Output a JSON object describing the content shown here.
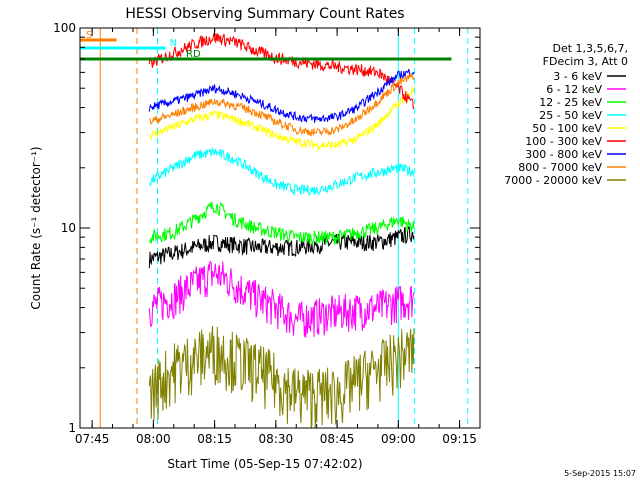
{
  "chart_data": {
    "type": "line",
    "title": "HESSI Observing Summary Count Rates",
    "xlabel": "Start Time (05-Sep-15 07:42:02)",
    "ylabel": "Count Rate (s⁻¹ detector⁻¹)",
    "yscale": "log",
    "ylim": [
      1,
      100
    ],
    "xlim": [
      "07:42:02",
      "09:20:00"
    ],
    "x_ticks": [
      "07:45",
      "08:00",
      "08:15",
      "08:30",
      "08:45",
      "09:00",
      "09:15"
    ],
    "y_ticks": [
      "1",
      "10",
      "100"
    ],
    "legend_header": [
      "Det 1,3,5,6,7,",
      "FDecim 3, Att 0"
    ],
    "legend_placement": "right",
    "date_stamp": "5-Sep-2015 15:07",
    "flags": [
      {
        "label": "S",
        "color": "#ff8000",
        "start": "07:42",
        "end": "07:51"
      },
      {
        "label": "N",
        "color": "#00ffff",
        "start": "07:42",
        "end": "08:03"
      },
      {
        "label": "RD",
        "color": "#008000",
        "start": "07:42",
        "end": "09:13"
      }
    ],
    "series": [
      {
        "name": "3 - 6 keV",
        "color": "#000000",
        "x": [
          "07:59",
          "08:05",
          "08:15",
          "08:25",
          "08:35",
          "08:45",
          "08:50",
          "08:55",
          "09:00",
          "09:04"
        ],
        "y": [
          7.0,
          7.5,
          8.5,
          8.0,
          8.0,
          8.5,
          8.5,
          8.5,
          9.0,
          9.5
        ]
      },
      {
        "name": "6 - 12 keV",
        "color": "#ff00ff",
        "x": [
          "07:59",
          "08:05",
          "08:15",
          "08:25",
          "08:35",
          "08:45",
          "08:55",
          "09:04"
        ],
        "y": [
          4.0,
          4.5,
          6.0,
          4.5,
          3.5,
          3.8,
          4.0,
          4.5
        ]
      },
      {
        "name": "12 - 25 keV",
        "color": "#00ff00",
        "x": [
          "07:59",
          "08:05",
          "08:10",
          "08:15",
          "08:20",
          "08:25",
          "08:30",
          "08:35",
          "08:40",
          "08:45",
          "08:50",
          "08:55",
          "09:00",
          "09:04"
        ],
        "y": [
          9.0,
          9.5,
          11.0,
          13.0,
          11.0,
          10.0,
          9.5,
          9.0,
          9.0,
          9.0,
          9.5,
          10.0,
          11.0,
          10.0
        ]
      },
      {
        "name": "25 - 50 keV",
        "color": "#00ffff",
        "x": [
          "07:59",
          "08:05",
          "08:10",
          "08:15",
          "08:20",
          "08:25",
          "08:30",
          "08:35",
          "08:40",
          "08:45",
          "08:50",
          "08:55",
          "09:00",
          "09:04"
        ],
        "y": [
          17.0,
          20.0,
          23.0,
          24.0,
          22.0,
          19.0,
          16.5,
          15.5,
          15.5,
          16.5,
          18.0,
          19.0,
          20.0,
          19.0
        ]
      },
      {
        "name": "50 - 100 keV",
        "color": "#ffff00",
        "x": [
          "07:59",
          "08:05",
          "08:10",
          "08:15",
          "08:20",
          "08:25",
          "08:30",
          "08:35",
          "08:40",
          "08:45",
          "08:50",
          "08:55",
          "09:00",
          "09:04"
        ],
        "y": [
          29.0,
          32.0,
          35.0,
          37.0,
          35.0,
          32.0,
          29.0,
          27.0,
          26.0,
          26.0,
          28.0,
          33.0,
          42.0,
          49.0
        ]
      },
      {
        "name": "100 - 300 keV",
        "color": "#ff0000",
        "x": [
          "07:59",
          "08:05",
          "08:10",
          "08:15",
          "08:20",
          "08:25",
          "08:30",
          "08:35",
          "08:40",
          "08:45",
          "08:50",
          "08:55",
          "09:00",
          "09:04"
        ],
        "y": [
          66.0,
          75.0,
          83.0,
          90.0,
          85.0,
          77.0,
          71.0,
          68.0,
          66.0,
          64.0,
          62.0,
          60.0,
          50.0,
          40.0
        ]
      },
      {
        "name": "300 - 800 keV",
        "color": "#0000ff",
        "x": [
          "07:59",
          "08:05",
          "08:10",
          "08:15",
          "08:20",
          "08:25",
          "08:30",
          "08:35",
          "08:40",
          "08:45",
          "08:50",
          "08:55",
          "09:00",
          "09:04"
        ],
        "y": [
          40.0,
          43.0,
          46.0,
          50.0,
          47.0,
          43.0,
          39.0,
          36.0,
          35.0,
          36.0,
          40.0,
          48.0,
          58.0,
          61.0
        ]
      },
      {
        "name": "800 - 7000 keV",
        "color": "#ff8000",
        "x": [
          "07:59",
          "08:05",
          "08:10",
          "08:15",
          "08:20",
          "08:25",
          "08:30",
          "08:35",
          "08:40",
          "08:45",
          "08:50",
          "08:55",
          "09:00",
          "09:04"
        ],
        "y": [
          34.0,
          37.0,
          40.0,
          43.0,
          41.0,
          38.0,
          34.0,
          31.0,
          30.0,
          31.0,
          35.0,
          43.0,
          53.0,
          58.0
        ]
      },
      {
        "name": "7000 - 20000 keV",
        "color": "#808000",
        "x": [
          "07:59",
          "08:05",
          "08:15",
          "08:25",
          "08:35",
          "08:45",
          "08:55",
          "09:04"
        ],
        "y": [
          1.5,
          2.0,
          2.5,
          2.0,
          1.5,
          1.5,
          2.0,
          2.5
        ]
      }
    ],
    "vertical_markers": [
      {
        "time": "07:47",
        "color": "#ff8000",
        "style": "solid"
      },
      {
        "time": "07:56",
        "color": "#ff8000",
        "style": "dashed"
      },
      {
        "time": "08:01",
        "color": "#00ffff",
        "style": "dashed"
      },
      {
        "time": "09:00",
        "color": "#00ffff",
        "style": "solid"
      },
      {
        "time": "09:04",
        "color": "#00ffff",
        "style": "dashed"
      },
      {
        "time": "09:17",
        "color": "#00ffff",
        "style": "dashed"
      }
    ]
  }
}
